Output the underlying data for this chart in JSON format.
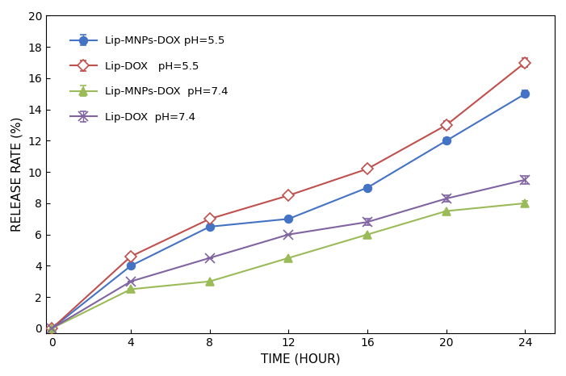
{
  "x": [
    0,
    4,
    8,
    12,
    16,
    20,
    24
  ],
  "series": [
    {
      "label": "Lip-MNPs-DOX pH=5.5",
      "y": [
        0,
        4.0,
        6.5,
        7.0,
        9.0,
        12.0,
        15.0
      ],
      "yerr": [
        0,
        0.0,
        0.0,
        0.0,
        0.15,
        0.2,
        0.2
      ],
      "color": "#4472C4",
      "marker": "o",
      "markersize": 7,
      "markerfacecolor": "#4472C4",
      "filled": true
    },
    {
      "label": "Lip-DOX   pH=5.5",
      "y": [
        0,
        4.6,
        7.0,
        8.5,
        10.2,
        13.0,
        17.0
      ],
      "yerr": [
        0,
        0.2,
        0.15,
        0.15,
        0.2,
        0.25,
        0.3
      ],
      "color": "#C0504D",
      "marker": "D",
      "markersize": 7,
      "markerfacecolor": "white",
      "filled": false
    },
    {
      "label": "Lip-MNPs-DOX  pH=7.4",
      "y": [
        0,
        2.5,
        3.0,
        4.5,
        6.0,
        7.5,
        8.0
      ],
      "yerr": [
        0,
        0.0,
        0.0,
        0.0,
        0.0,
        0.0,
        0.15
      ],
      "color": "#9BBB59",
      "marker": "^",
      "markersize": 7,
      "markerfacecolor": "#9BBB59",
      "filled": true
    },
    {
      "label": "Lip-DOX  pH=7.4",
      "y": [
        0,
        3.0,
        4.5,
        6.0,
        6.8,
        8.3,
        9.5
      ],
      "yerr": [
        0,
        0.0,
        0.0,
        0.0,
        0.2,
        0.2,
        0.25
      ],
      "color": "#8064A2",
      "marker": "x",
      "markersize": 8,
      "markerfacecolor": "#8064A2",
      "filled": true
    }
  ],
  "xlabel": "TIME (HOUR)",
  "ylabel": "RELEASE RATE (%)",
  "xlim": [
    -0.3,
    25.5
  ],
  "ylim": [
    -0.3,
    20
  ],
  "yticks": [
    0,
    2,
    4,
    6,
    8,
    10,
    12,
    14,
    16,
    18,
    20
  ],
  "xticks": [
    0,
    4,
    8,
    12,
    16,
    20,
    24
  ],
  "legend_loc": "upper left",
  "figsize": [
    7.01,
    4.66
  ],
  "dpi": 100
}
